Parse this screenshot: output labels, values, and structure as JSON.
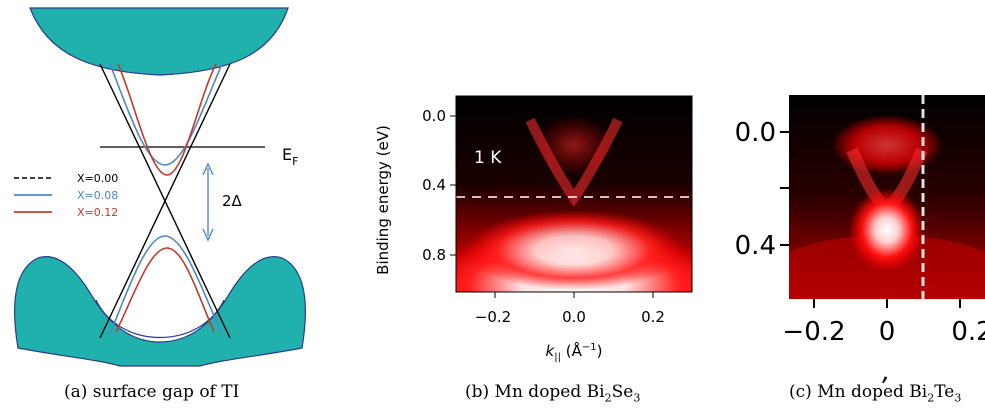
{
  "panel_a": {
    "fermi_label": "E",
    "fermi_sub": "F",
    "gap_label": "2Δ",
    "legend": [
      {
        "label": "X=0.00",
        "color": "#000000",
        "dashed": true
      },
      {
        "label": "X=0.08",
        "color": "#4f86c6",
        "dashed": false
      },
      {
        "label": "X=0.12",
        "color": "#c0392b",
        "dashed": false
      }
    ],
    "band_color": "#21b1ad",
    "caption": "(a) surface gap of TI"
  },
  "panel_b": {
    "ylabel": "Binding energy (eV)",
    "xlabel_main": "k",
    "xlabel_sub": "||",
    "xlabel_unit": "(Å",
    "xlabel_exp": "−1",
    "xlabel_close": ")",
    "temp_label": "1 K",
    "yticks": [
      "0.0",
      "0.4",
      "0.8"
    ],
    "xticks": [
      "−0.2",
      "0.0",
      "0.2"
    ],
    "caption_pre": "(b) Mn doped Bi",
    "caption_s1": "2",
    "caption_mid": "Se",
    "caption_s2": "3"
  },
  "panel_c": {
    "yticks": [
      "0.0",
      "0.4"
    ],
    "xticks": [
      "−0.2",
      "0",
      "0.2"
    ],
    "caption_pre": "(c) Mn doped Bi",
    "caption_s1": "2",
    "caption_mid": "Te",
    "caption_s2": "3"
  }
}
